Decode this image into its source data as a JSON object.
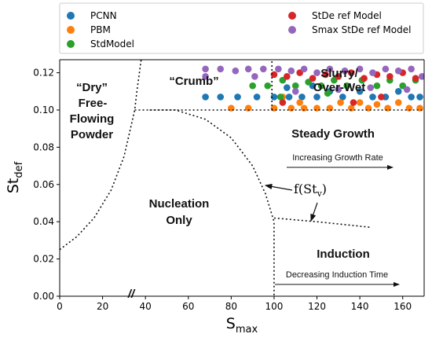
{
  "chart_data": {
    "type": "scatter",
    "xlabel": "S",
    "xlabel_sub": "max",
    "ylabel": "St",
    "ylabel_sub": "def",
    "xlim": [
      0,
      170
    ],
    "ylim": [
      0,
      0.127
    ],
    "xticks": [
      "0",
      "20",
      "40",
      "60",
      "80",
      "100",
      "120",
      "140",
      "160"
    ],
    "yticks": [
      "0.00",
      "0.02",
      "0.04",
      "0.06",
      "0.08",
      "0.10",
      "0.12"
    ],
    "legend_placement": "top",
    "legend": [
      {
        "name": "PCNN",
        "color": "#1f77b4"
      },
      {
        "name": "PBM",
        "color": "#ff7f0e"
      },
      {
        "name": "StdModel",
        "color": "#2ca02c"
      },
      {
        "name": "StDe ref Model",
        "color": "#d62728"
      },
      {
        "name": "Smax StDe ref Model",
        "color": "#9467bd"
      }
    ],
    "series": [
      {
        "name": "PCNN",
        "color": "#1f77b4",
        "points": [
          [
            68,
            0.107
          ],
          [
            75,
            0.107
          ],
          [
            83,
            0.107
          ],
          [
            92,
            0.107
          ],
          [
            100,
            0.107
          ],
          [
            107,
            0.107
          ],
          [
            113,
            0.107
          ],
          [
            120,
            0.107
          ],
          [
            126,
            0.11
          ],
          [
            132,
            0.107
          ],
          [
            140,
            0.11
          ],
          [
            146,
            0.107
          ],
          [
            152,
            0.107
          ],
          [
            158,
            0.11
          ],
          [
            164,
            0.107
          ],
          [
            168,
            0.107
          ],
          [
            106,
            0.112
          ],
          [
            118,
            0.113
          ]
        ]
      },
      {
        "name": "PBM",
        "color": "#ff7f0e",
        "points": [
          [
            80,
            0.101
          ],
          [
            88,
            0.101
          ],
          [
            100,
            0.101
          ],
          [
            108,
            0.101
          ],
          [
            114,
            0.101
          ],
          [
            120,
            0.101
          ],
          [
            126,
            0.101
          ],
          [
            131,
            0.104
          ],
          [
            136,
            0.101
          ],
          [
            140,
            0.104
          ],
          [
            144,
            0.101
          ],
          [
            148,
            0.103
          ],
          [
            153,
            0.101
          ],
          [
            158,
            0.104
          ],
          [
            163,
            0.101
          ],
          [
            168,
            0.101
          ],
          [
            104,
            0.107
          ],
          [
            112,
            0.104
          ]
        ]
      },
      {
        "name": "StdModel",
        "color": "#2ca02c",
        "points": [
          [
            90,
            0.113
          ],
          [
            97,
            0.113
          ],
          [
            104,
            0.116
          ],
          [
            110,
            0.113
          ],
          [
            116,
            0.115
          ],
          [
            122,
            0.113
          ],
          [
            128,
            0.116
          ],
          [
            134,
            0.113
          ],
          [
            141,
            0.116
          ],
          [
            148,
            0.113
          ],
          [
            154,
            0.116
          ],
          [
            160,
            0.113
          ],
          [
            166,
            0.116
          ],
          [
            103,
            0.107
          ],
          [
            125,
            0.109
          ]
        ]
      },
      {
        "name": "StDe ref Model",
        "color": "#d62728",
        "points": [
          [
            100,
            0.119
          ],
          [
            106,
            0.118
          ],
          [
            112,
            0.12
          ],
          [
            118,
            0.117
          ],
          [
            124,
            0.119
          ],
          [
            130,
            0.118
          ],
          [
            136,
            0.12
          ],
          [
            142,
            0.117
          ],
          [
            148,
            0.119
          ],
          [
            154,
            0.118
          ],
          [
            160,
            0.12
          ],
          [
            166,
            0.117
          ],
          [
            104,
            0.104
          ],
          [
            137,
            0.104
          ],
          [
            150,
            0.107
          ]
        ]
      },
      {
        "name": "Smax StDe ref Model",
        "color": "#9467bd",
        "points": [
          [
            68,
            0.122
          ],
          [
            68,
            0.118
          ],
          [
            75,
            0.122
          ],
          [
            82,
            0.121
          ],
          [
            88,
            0.122
          ],
          [
            91,
            0.118
          ],
          [
            95,
            0.122
          ],
          [
            102,
            0.122
          ],
          [
            108,
            0.121
          ],
          [
            114,
            0.122
          ],
          [
            120,
            0.12
          ],
          [
            126,
            0.122
          ],
          [
            133,
            0.121
          ],
          [
            140,
            0.122
          ],
          [
            146,
            0.12
          ],
          [
            152,
            0.122
          ],
          [
            158,
            0.121
          ],
          [
            164,
            0.122
          ],
          [
            169,
            0.118
          ],
          [
            110,
            0.11
          ],
          [
            130,
            0.111
          ],
          [
            145,
            0.112
          ],
          [
            162,
            0.111
          ]
        ]
      }
    ],
    "boundaries": {
      "dry_powder": [
        [
          0,
          0.025
        ],
        [
          8,
          0.032
        ],
        [
          16,
          0.042
        ],
        [
          24,
          0.057
        ],
        [
          30,
          0.075
        ],
        [
          33,
          0.09
        ],
        [
          35,
          0.1
        ],
        [
          36,
          0.11
        ],
        [
          38,
          0.127
        ]
      ],
      "nucleation_top": [
        [
          35,
          0.1
        ],
        [
          54,
          0.1
        ],
        [
          68,
          0.095
        ],
        [
          80,
          0.085
        ],
        [
          90,
          0.07
        ],
        [
          96,
          0.055
        ],
        [
          100,
          0.04
        ],
        [
          100,
          0.0
        ]
      ],
      "upper_flat": [
        [
          42,
          0.1
        ],
        [
          170,
          0.1
        ]
      ],
      "growth_vertical": [
        [
          99,
          0.1
        ],
        [
          99,
          0.127
        ]
      ],
      "induction_line": [
        [
          100,
          0.042
        ],
        [
          120,
          0.04
        ],
        [
          145,
          0.037
        ]
      ]
    },
    "annotations": {
      "dry": "“Dry”",
      "free": "Free-",
      "flowing": "Flowing",
      "powder": "Powder",
      "crumb": "“Crumb”",
      "slurry1": "Slurry/",
      "slurry2": "Over-Wet",
      "steady": "Steady Growth",
      "growth_rate": "Increasing Growth Rate",
      "nucleation": "Nucleation",
      "only": "Only",
      "func": "f(St",
      "func_sub": "v",
      "func_close": ")",
      "induction": "Induction",
      "induction_time": "Decreasing Induction Time",
      "break_mark": "//"
    }
  }
}
